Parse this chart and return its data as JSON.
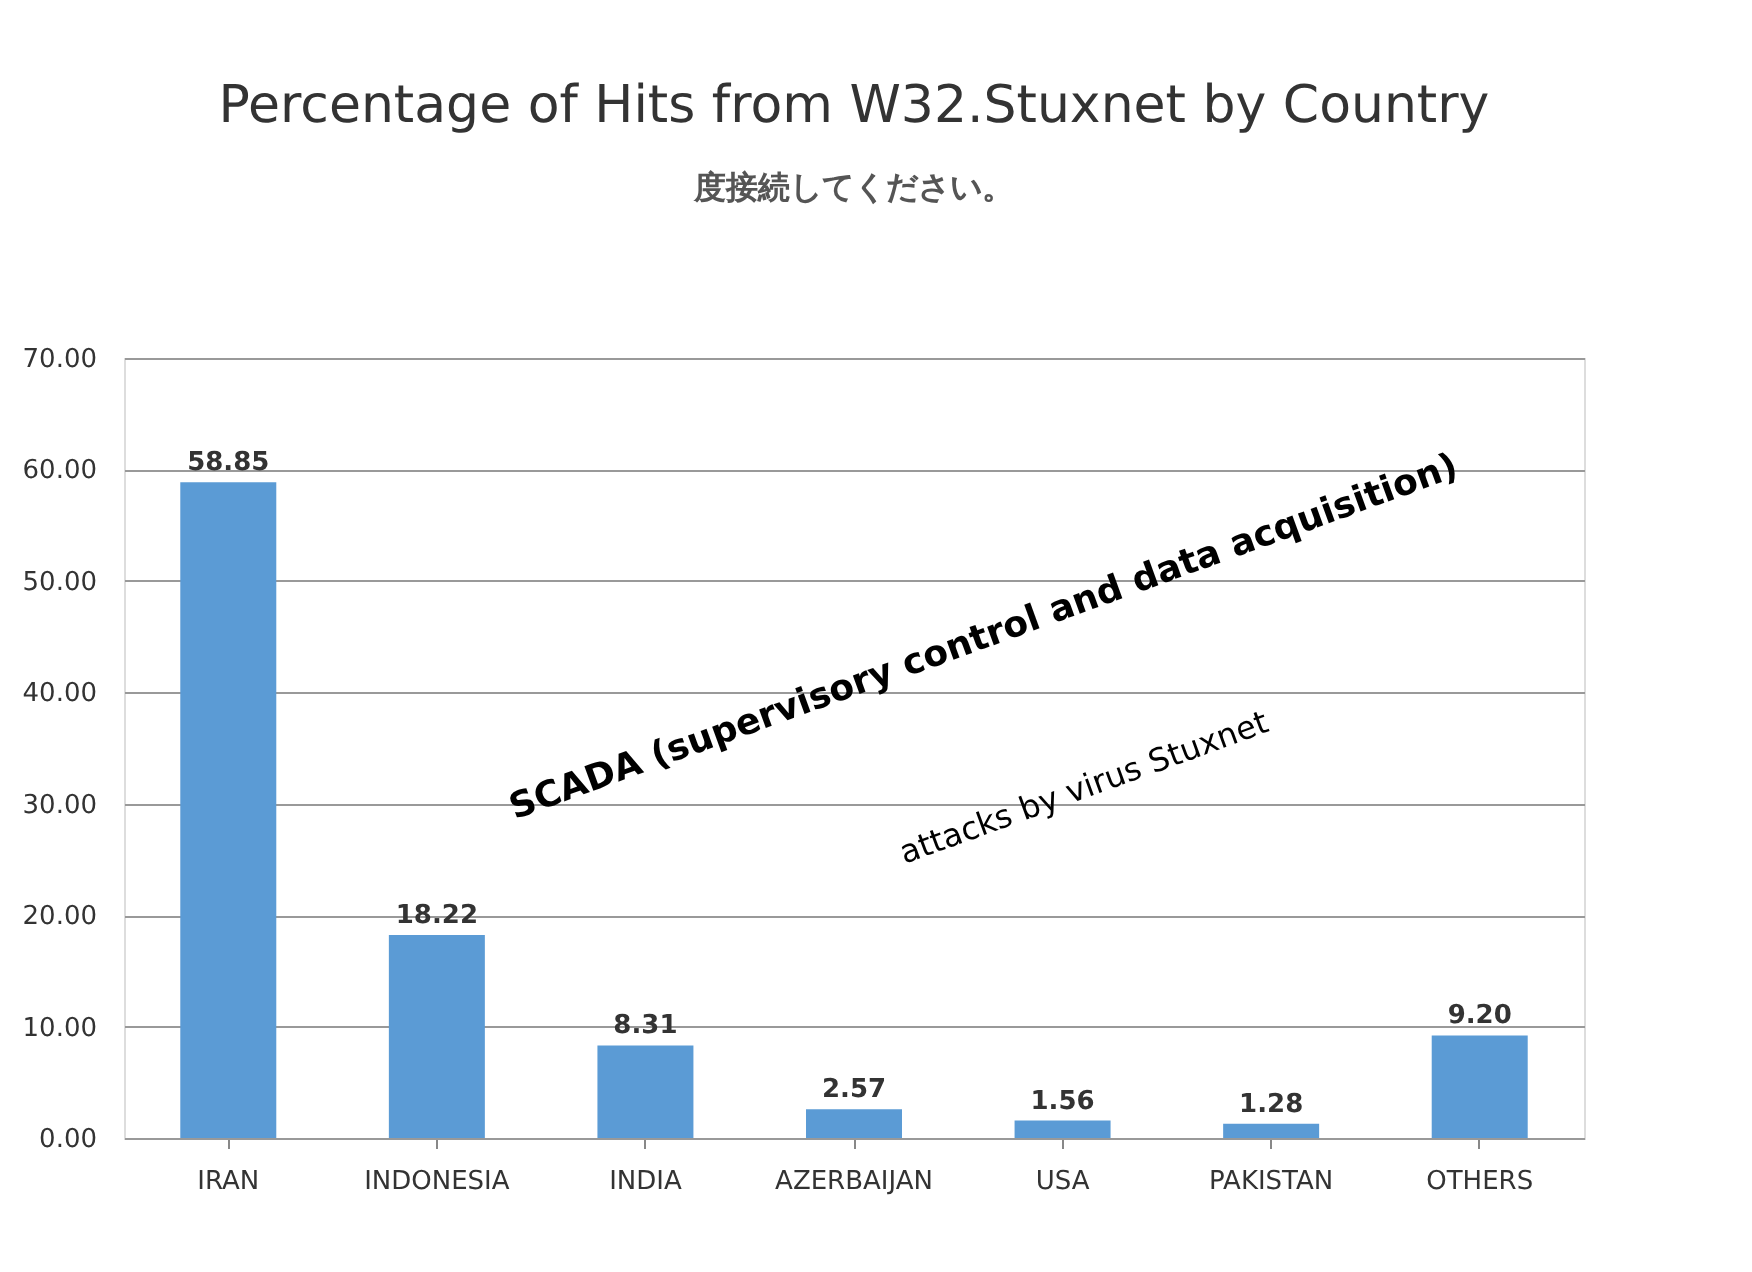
{
  "chart_data": {
    "type": "bar",
    "title": "Percentage of Hits from W32.Stuxnet by Country",
    "categories": [
      "IRAN",
      "INDONESIA",
      "INDIA",
      "AZERBAIJAN",
      "USA",
      "PAKISTAN",
      "OTHERS"
    ],
    "values": [
      58.85,
      18.22,
      8.31,
      2.57,
      1.56,
      1.28,
      9.2
    ],
    "value_labels": [
      "58.85",
      "18.22",
      "8.31",
      "2.57",
      "1.56",
      "1.28",
      "9.20"
    ],
    "color": "#5b9bd5",
    "ylim": [
      0,
      70
    ],
    "yticks": [
      {
        "value": 0,
        "label": "0.00"
      },
      {
        "value": 10,
        "label": "10.00"
      },
      {
        "value": 20,
        "label": "20.00"
      },
      {
        "value": 30,
        "label": "30.00"
      },
      {
        "value": 40,
        "label": "40.00"
      },
      {
        "value": 50,
        "label": "50.00"
      },
      {
        "value": 60,
        "label": "60.00"
      },
      {
        "value": 70,
        "label": "70.00"
      }
    ],
    "grid": "y",
    "annotations": [
      "度接続してください。",
      "SCADA (supervisory control and data acquisition)",
      "attacks by virus Stuxnet"
    ]
  }
}
